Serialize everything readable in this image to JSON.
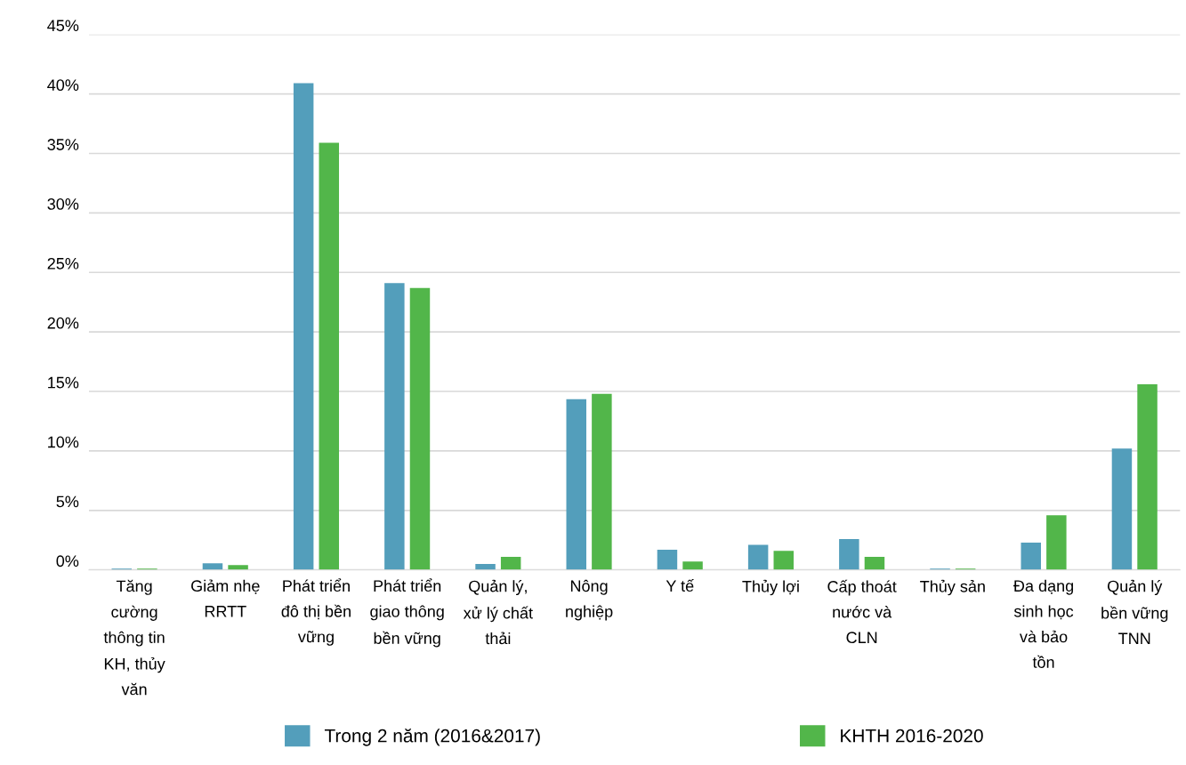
{
  "chart_data": {
    "type": "bar",
    "categories": [
      "Tăng\ncường\nthông tin\nKH, thủy\nvăn",
      "Giảm nhẹ\nRRTT",
      "Phát triển\nđô thị bền\nvững",
      "Phát triển\ngiao thông\nbền vững",
      "Quản lý,\nxử lý chất\nthải",
      "Nông\nnghiệp",
      "Y tế",
      "Thủy lợi",
      "Cấp thoát\nnước và\nCLN",
      "Thủy sản",
      "Đa dạng\nsinh học\nvà bảo\ntồn",
      "Quản lý\nbền vững\nTNN"
    ],
    "series": [
      {
        "name": "Trong 2 năm (2016&2017)",
        "color": "#539ebb",
        "values": [
          0.1,
          0.55,
          40.9,
          24.1,
          0.5,
          14.35,
          1.7,
          2.1,
          2.6,
          0.1,
          2.3,
          10.2
        ]
      },
      {
        "name": "KHTH 2016-2020",
        "color": "#52b64a",
        "values": [
          0.1,
          0.4,
          35.9,
          23.7,
          1.1,
          14.8,
          0.7,
          1.6,
          1.1,
          0.1,
          4.6,
          15.6
        ]
      }
    ],
    "ylim": [
      0,
      45
    ],
    "yticks": [
      {
        "value": 0,
        "label": "0%"
      },
      {
        "value": 5,
        "label": "5%"
      },
      {
        "value": 10,
        "label": "10%"
      },
      {
        "value": 15,
        "label": "15%"
      },
      {
        "value": 20,
        "label": "20%"
      },
      {
        "value": 25,
        "label": "25%"
      },
      {
        "value": 30,
        "label": "30%"
      },
      {
        "value": 35,
        "label": "35%"
      },
      {
        "value": 40,
        "label": "40%"
      },
      {
        "value": 45,
        "label": "45%"
      }
    ],
    "grid": "y",
    "legend": "bottom"
  }
}
